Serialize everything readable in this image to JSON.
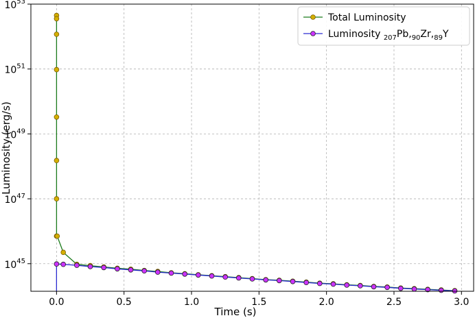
{
  "chart_data": {
    "type": "line",
    "xlabel": "Time (s)",
    "ylabel": "Luminosity (erg/s)",
    "yscale": "log",
    "xlim": [
      -0.19,
      3.09
    ],
    "ylim_log10": [
      44.15,
      53.0
    ],
    "grid": true,
    "legend_position": "top-right",
    "x_ticks": [
      {
        "value": 0.0,
        "label": "0.0"
      },
      {
        "value": 0.5,
        "label": "0.5"
      },
      {
        "value": 1.0,
        "label": "1.0"
      },
      {
        "value": 1.5,
        "label": "1.5"
      },
      {
        "value": 2.0,
        "label": "2.0"
      },
      {
        "value": 2.5,
        "label": "2.5"
      },
      {
        "value": 3.0,
        "label": "3.0"
      }
    ],
    "y_ticks": [
      {
        "log10": 45,
        "base": "10",
        "exp": "45"
      },
      {
        "log10": 47,
        "base": "10",
        "exp": "47"
      },
      {
        "log10": 49,
        "base": "10",
        "exp": "49"
      },
      {
        "log10": 51,
        "base": "10",
        "exp": "51"
      },
      {
        "log10": 53,
        "base": "10",
        "exp": "53"
      }
    ],
    "series": [
      {
        "name": "Total Luminosity",
        "line_color": "#1a7a1a",
        "marker_color": "#d4b000",
        "marker_edge": "#7a5a00",
        "x": [
          0.0,
          0.0,
          0.0,
          0.0,
          0.0,
          0.0,
          0.0,
          0.0,
          0.005,
          0.05,
          0.15,
          0.25,
          0.35,
          0.45,
          0.55,
          0.65,
          0.75,
          0.85,
          0.95,
          1.05,
          1.15,
          1.25,
          1.35,
          1.45,
          1.55,
          1.65,
          1.75,
          1.85,
          1.95,
          2.05,
          2.15,
          2.25,
          2.35,
          2.45,
          2.55,
          2.65,
          2.75,
          2.85,
          2.95
        ],
        "log10_y": [
          52.65,
          52.55,
          52.07,
          50.98,
          49.52,
          48.18,
          47.0,
          45.85,
          45.85,
          45.35,
          44.98,
          44.94,
          44.9,
          44.86,
          44.83,
          44.79,
          44.76,
          44.72,
          44.69,
          44.66,
          44.63,
          44.6,
          44.57,
          44.54,
          44.51,
          44.49,
          44.46,
          44.43,
          44.4,
          44.38,
          44.35,
          44.33,
          44.3,
          44.28,
          44.25,
          44.23,
          44.21,
          44.19,
          44.17
        ]
      },
      {
        "name_parts": [
          "Luminosity ",
          "207",
          "Pb,",
          "90",
          "Zr,",
          "89",
          "Y"
        ],
        "line_color": "#2a2ad0",
        "marker_color": "#cc33ff",
        "marker_edge": "#222222",
        "drop_to_axis_at_x": 0.0,
        "x": [
          0.0,
          0.05,
          0.15,
          0.25,
          0.35,
          0.45,
          0.55,
          0.65,
          0.75,
          0.85,
          0.95,
          1.05,
          1.15,
          1.25,
          1.35,
          1.45,
          1.55,
          1.65,
          1.75,
          1.85,
          1.95,
          2.05,
          2.15,
          2.25,
          2.35,
          2.45,
          2.55,
          2.65,
          2.75,
          2.85,
          2.95
        ],
        "log10_y": [
          44.99,
          44.98,
          44.95,
          44.91,
          44.88,
          44.84,
          44.81,
          44.78,
          44.74,
          44.71,
          44.68,
          44.65,
          44.62,
          44.59,
          44.56,
          44.53,
          44.5,
          44.48,
          44.45,
          44.42,
          44.39,
          44.37,
          44.34,
          44.32,
          44.29,
          44.27,
          44.24,
          44.22,
          44.2,
          44.18,
          44.16
        ]
      }
    ],
    "legend": [
      {
        "text_parts": [
          "Total Luminosity"
        ]
      },
      {
        "text_parts": [
          "Luminosity ",
          "207",
          "Pb,",
          "90",
          "Zr,",
          "89",
          "Y"
        ]
      }
    ]
  }
}
